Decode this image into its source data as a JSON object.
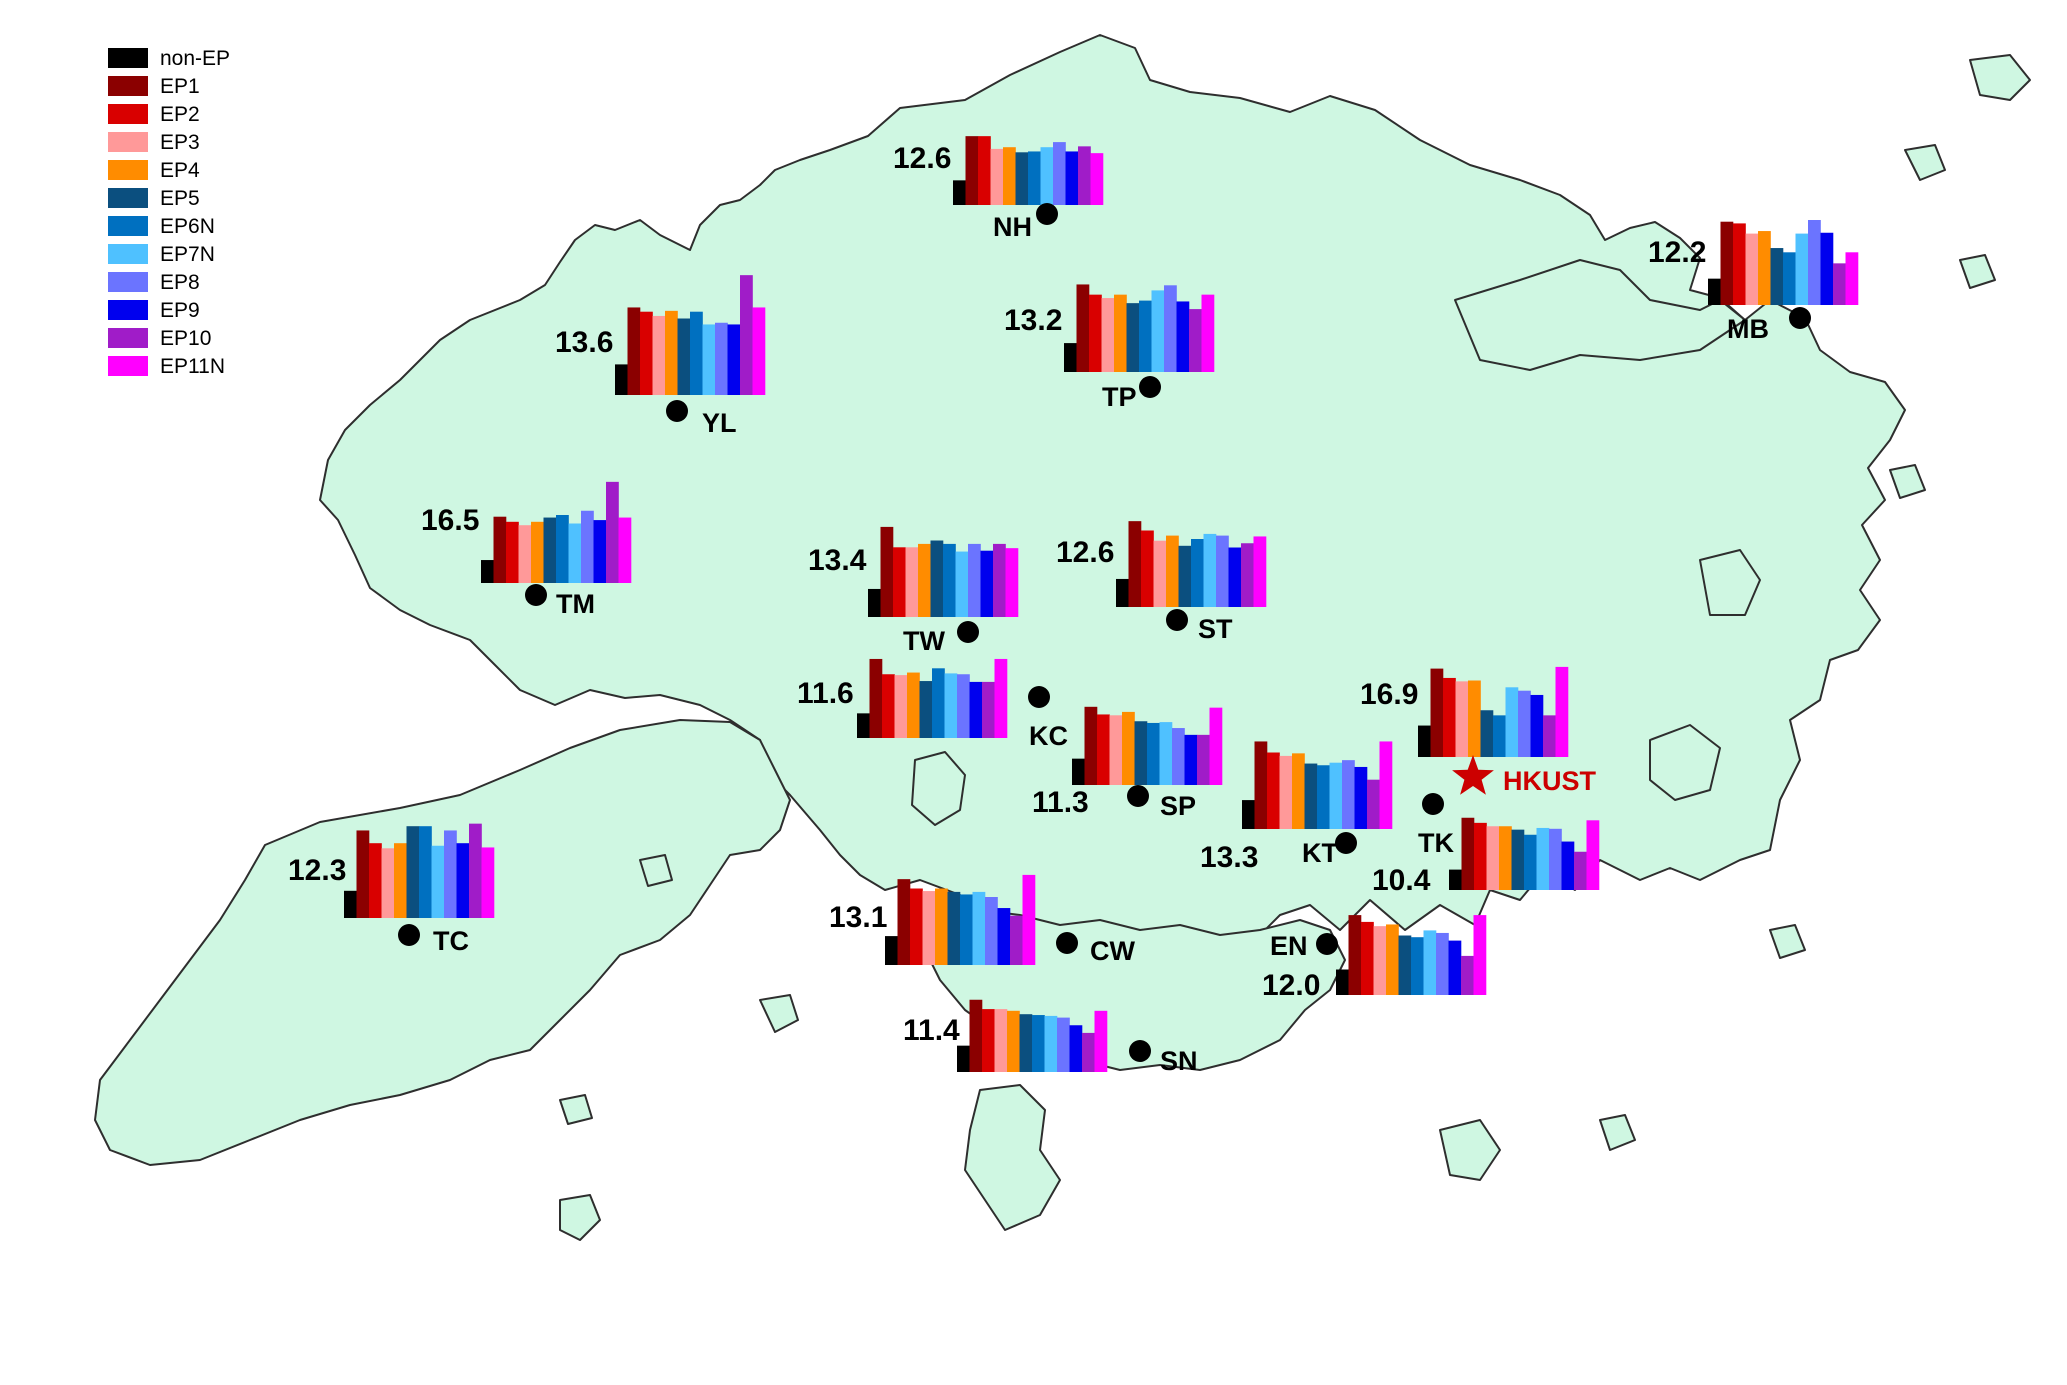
{
  "legend": [
    {
      "label": "non-EP",
      "color": "#000000"
    },
    {
      "label": "EP1",
      "color": "#8b0000"
    },
    {
      "label": "EP2",
      "color": "#d90000"
    },
    {
      "label": "EP3",
      "color": "#ff9999"
    },
    {
      "label": "EP4",
      "color": "#ff8c00"
    },
    {
      "label": "EP5",
      "color": "#0b4f7f"
    },
    {
      "label": "EP6N",
      "color": "#0070c0"
    },
    {
      "label": "EP7N",
      "color": "#4fc1ff"
    },
    {
      "label": "EP8",
      "color": "#6b74ff"
    },
    {
      "label": "EP9",
      "color": "#0000ee"
    },
    {
      "label": "EP10",
      "color": "#a01cc8"
    },
    {
      "label": "EP11N",
      "color": "#ff00ff"
    }
  ],
  "highlight": {
    "label": "HKUST",
    "color": "#cc0000",
    "icon": "star-icon"
  },
  "stations": [
    {
      "code": "NH",
      "total": "12.6",
      "values": [
        0.29,
        0.81,
        0.81,
        0.66,
        0.68,
        0.62,
        0.63,
        0.68,
        0.74,
        0.63,
        0.69,
        0.61
      ]
    },
    {
      "code": "MB",
      "total": "12.2",
      "values": [
        0.31,
        0.98,
        0.96,
        0.84,
        0.87,
        0.67,
        0.62,
        0.84,
        1.0,
        0.85,
        0.49,
        0.62
      ]
    },
    {
      "code": "YL",
      "total": "13.6",
      "values": [
        0.36,
        1.03,
        0.98,
        0.93,
        0.99,
        0.9,
        0.98,
        0.83,
        0.85,
        0.83,
        1.41,
        1.03
      ]
    },
    {
      "code": "TP",
      "total": "13.2",
      "values": [
        0.34,
        1.03,
        0.91,
        0.87,
        0.91,
        0.81,
        0.84,
        0.96,
        1.02,
        0.83,
        0.74,
        0.91
      ]
    },
    {
      "code": "TM",
      "total": "16.5",
      "values": [
        0.27,
        0.78,
        0.72,
        0.68,
        0.72,
        0.77,
        0.8,
        0.7,
        0.85,
        0.74,
        1.19,
        0.77
      ]
    },
    {
      "code": "TW",
      "total": "13.4",
      "values": [
        0.33,
        1.06,
        0.82,
        0.82,
        0.86,
        0.9,
        0.86,
        0.77,
        0.86,
        0.78,
        0.86,
        0.81
      ]
    },
    {
      "code": "ST",
      "total": "12.6",
      "values": [
        0.33,
        1.01,
        0.9,
        0.78,
        0.84,
        0.72,
        0.8,
        0.86,
        0.84,
        0.7,
        0.75,
        0.83
      ]
    },
    {
      "code": "KC",
      "total": "11.6",
      "values": [
        0.29,
        0.93,
        0.75,
        0.74,
        0.77,
        0.67,
        0.82,
        0.76,
        0.75,
        0.66,
        0.66,
        0.93
      ]
    },
    {
      "code": "SP",
      "total": "11.3",
      "values": [
        0.31,
        0.92,
        0.83,
        0.82,
        0.86,
        0.75,
        0.73,
        0.74,
        0.67,
        0.59,
        0.59,
        0.91
      ]
    },
    {
      "code": "KT",
      "total": "13.3",
      "values": [
        0.34,
        1.03,
        0.9,
        0.86,
        0.89,
        0.77,
        0.75,
        0.78,
        0.81,
        0.73,
        0.58,
        1.03
      ]
    },
    {
      "code": "HKUST",
      "total": "16.9",
      "values": [
        0.37,
        1.04,
        0.93,
        0.89,
        0.9,
        0.55,
        0.49,
        0.82,
        0.78,
        0.73,
        0.49,
        1.06
      ]
    },
    {
      "code": "TC",
      "total": "12.3",
      "values": [
        0.32,
        1.03,
        0.88,
        0.82,
        0.88,
        1.08,
        1.08,
        0.85,
        1.03,
        0.88,
        1.11,
        0.83
      ]
    },
    {
      "code": "TK",
      "total": "10.4",
      "values": [
        0.24,
        0.85,
        0.79,
        0.75,
        0.75,
        0.71,
        0.65,
        0.73,
        0.72,
        0.57,
        0.45,
        0.82
      ]
    },
    {
      "code": "CW",
      "total": "13.1",
      "values": [
        0.34,
        1.01,
        0.9,
        0.87,
        0.9,
        0.86,
        0.83,
        0.86,
        0.8,
        0.67,
        0.58,
        1.06
      ]
    },
    {
      "code": "EN",
      "total": "12.0",
      "values": [
        0.3,
        0.94,
        0.86,
        0.81,
        0.83,
        0.7,
        0.68,
        0.76,
        0.73,
        0.64,
        0.46,
        0.94
      ]
    },
    {
      "code": "SN",
      "total": "11.4",
      "values": [
        0.31,
        0.85,
        0.74,
        0.74,
        0.72,
        0.68,
        0.67,
        0.66,
        0.64,
        0.55,
        0.46,
        0.72
      ]
    }
  ]
}
